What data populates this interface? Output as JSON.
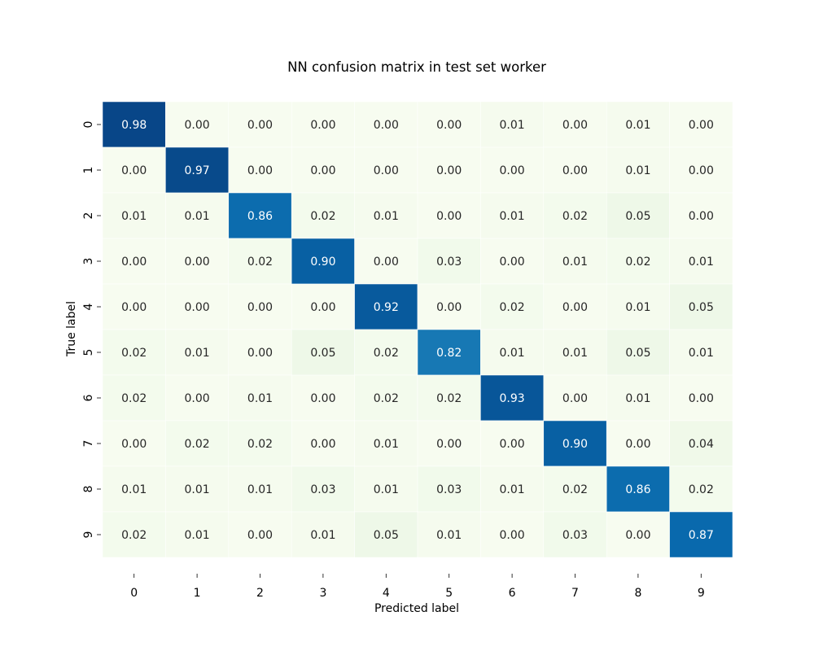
{
  "chart_data": {
    "type": "heatmap",
    "title": "NN confusion matrix in test set worker",
    "xlabel": "Predicted label",
    "ylabel": "True label",
    "x_categories": [
      "0",
      "1",
      "2",
      "3",
      "4",
      "5",
      "6",
      "7",
      "8",
      "9"
    ],
    "y_categories": [
      "0",
      "1",
      "2",
      "3",
      "4",
      "5",
      "6",
      "7",
      "8",
      "9"
    ],
    "values": [
      [
        0.98,
        0.0,
        0.0,
        0.0,
        0.0,
        0.0,
        0.01,
        0.0,
        0.01,
        0.0
      ],
      [
        0.0,
        0.97,
        0.0,
        0.0,
        0.0,
        0.0,
        0.0,
        0.0,
        0.01,
        0.0
      ],
      [
        0.01,
        0.01,
        0.86,
        0.02,
        0.01,
        0.0,
        0.01,
        0.02,
        0.05,
        0.0
      ],
      [
        0.0,
        0.0,
        0.02,
        0.9,
        0.0,
        0.03,
        0.0,
        0.01,
        0.02,
        0.01
      ],
      [
        0.0,
        0.0,
        0.0,
        0.0,
        0.92,
        0.0,
        0.02,
        0.0,
        0.01,
        0.05
      ],
      [
        0.02,
        0.01,
        0.0,
        0.05,
        0.02,
        0.82,
        0.01,
        0.01,
        0.05,
        0.01
      ],
      [
        0.02,
        0.0,
        0.01,
        0.0,
        0.02,
        0.02,
        0.93,
        0.0,
        0.01,
        0.0
      ],
      [
        0.0,
        0.02,
        0.02,
        0.0,
        0.01,
        0.0,
        0.0,
        0.9,
        0.0,
        0.04
      ],
      [
        0.01,
        0.01,
        0.01,
        0.03,
        0.01,
        0.03,
        0.01,
        0.02,
        0.86,
        0.02
      ],
      [
        0.02,
        0.01,
        0.0,
        0.01,
        0.05,
        0.01,
        0.0,
        0.03,
        0.0,
        0.87
      ]
    ],
    "colormap": "GnBu",
    "grid": false,
    "legend": "none"
  }
}
